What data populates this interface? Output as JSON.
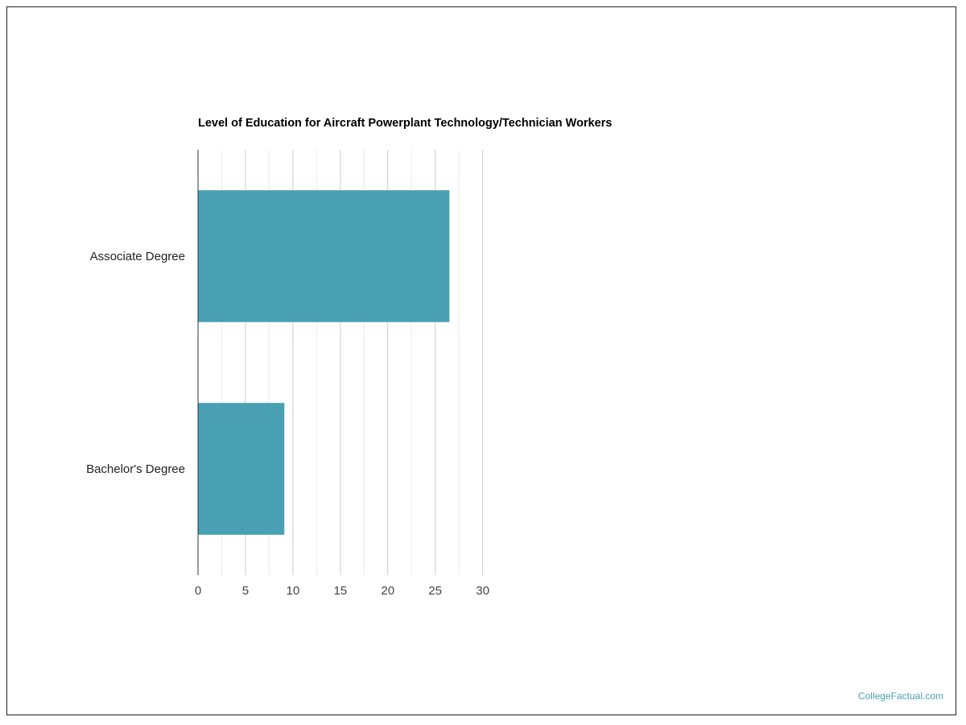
{
  "chart_data": {
    "type": "bar",
    "orientation": "horizontal",
    "title": "Level of Education for Aircraft Powerplant Technology/Technician Workers",
    "categories": [
      "Associate Degree",
      "Bachelor's Degree"
    ],
    "values": [
      26.5,
      9.1
    ],
    "xlim": [
      0,
      30
    ],
    "xticks": [
      "0",
      "5",
      "10",
      "15",
      "20",
      "25",
      "30"
    ],
    "grid": true,
    "bar_color": "#4aa0b3"
  },
  "watermark": "CollegeFactual.com"
}
